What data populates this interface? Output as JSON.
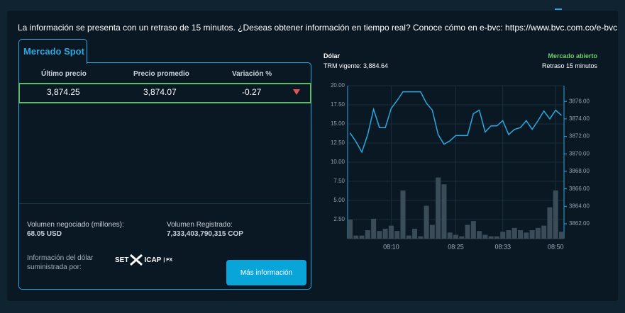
{
  "notice": "La información se presenta con un retraso de 15 minutos. ¿Deseas obtener información en tiempo real? Conoce cómo en e-bvc: https://www.bvc.com.co/e-bvc",
  "spot": {
    "tab": "Mercado Spot",
    "headers": [
      "Último precio",
      "Precio promedio",
      "Variación %"
    ],
    "row": [
      "3,874.25",
      "3,874.07",
      "-0.27"
    ],
    "volume_label": "Volumen negociado (millones):",
    "volume_value": "68.05 USD",
    "registered_label": "Volumen Registrado:",
    "registered_value": "7,333,403,790,315 COP",
    "provider_label": "Información del dólar suministrada por:",
    "provider_logo": [
      "SET",
      "ICAP",
      "| FX"
    ],
    "button": "Más información"
  },
  "market": {
    "title": "Dólar",
    "trm": "TRM vigente: 3,884.64",
    "status": "Mercado abierto",
    "delay": "Retraso 15 minutos"
  },
  "chart_data": {
    "type": "combo",
    "grid": true,
    "categories": [
      null,
      null,
      null,
      null,
      null,
      null,
      null,
      "08:10",
      null,
      null,
      null,
      null,
      null,
      null,
      null,
      null,
      null,
      null,
      "08:25",
      null,
      null,
      null,
      null,
      null,
      null,
      null,
      "08:33",
      null,
      null,
      null,
      null,
      null,
      null,
      null,
      null,
      "08:50",
      null
    ],
    "series": [
      {
        "type": "bar",
        "color": "#3b4c59",
        "values": [
          2.5,
          0.4,
          0.4,
          1.1,
          2.6,
          1.0,
          1.3,
          1.7,
          1.0,
          6.3,
          0.4,
          1.3,
          0.3,
          4.3,
          1.8,
          8.0,
          7.1,
          0.8,
          0.5,
          0.3,
          1.8,
          2.3,
          1.0,
          0.5,
          0.3,
          0.3,
          0.9,
          1.1,
          1.4,
          1.1,
          0.8,
          1.1,
          1.4,
          1.7,
          4.1,
          6.3,
          0.9
        ]
      },
      {
        "type": "line",
        "axis": "y2",
        "color": "#2aa9e0",
        "values": [
          3872.4,
          3871.4,
          3870.2,
          3872.2,
          3875.1,
          3873.0,
          3873.0,
          3875.2,
          3876.1,
          3877.1,
          3877.1,
          3877.1,
          3877.1,
          3875.8,
          3875.0,
          3872.2,
          3871.1,
          3871.5,
          3872.1,
          3872.1,
          3872.1,
          3874.6,
          3875.0,
          3872.5,
          3873.2,
          3873.2,
          3873.8,
          3872.2,
          3872.8,
          3873.0,
          3873.8,
          3872.8,
          3873.8,
          3874.9,
          3874.0,
          3875.0,
          3874.4
        ]
      }
    ],
    "ylim": [
      0,
      20
    ],
    "yticks": [
      {
        "value": 2.5,
        "label": "2.50"
      },
      {
        "value": 5,
        "label": "5.00"
      },
      {
        "value": 7.5,
        "label": "7.50"
      },
      {
        "value": 10,
        "label": "10.00"
      },
      {
        "value": 12.5,
        "label": "12.50"
      },
      {
        "value": 15,
        "label": "15.00"
      },
      {
        "value": 17.5,
        "label": "17.50"
      },
      {
        "value": 20,
        "label": "20.00"
      }
    ],
    "y2lim": [
      3860.3,
      3877.8
    ],
    "y2ticks": [
      {
        "value": 3862,
        "label": "3862.00"
      },
      {
        "value": 3864,
        "label": "3864.00"
      },
      {
        "value": 3866,
        "label": "3866.00"
      },
      {
        "value": 3868,
        "label": "3868.00"
      },
      {
        "value": 3870,
        "label": "3870.00"
      },
      {
        "value": 3872,
        "label": "3872.00"
      },
      {
        "value": 3874,
        "label": "3874.00"
      },
      {
        "value": 3876,
        "label": "3876.00"
      }
    ]
  }
}
